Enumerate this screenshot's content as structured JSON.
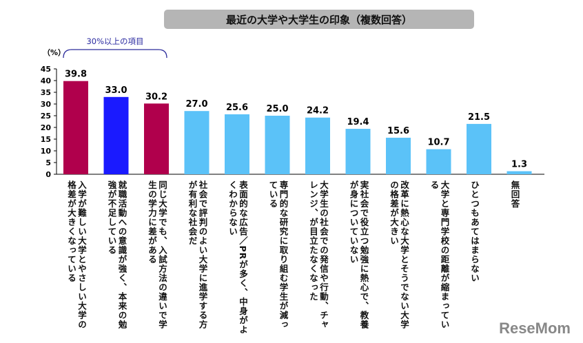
{
  "chart_data": {
    "type": "bar",
    "title": "最近の大学や大学生の印象（複数回答）",
    "ylabel": "（%）",
    "ylim": [
      0,
      45
    ],
    "yticks": [
      0,
      5,
      10,
      15,
      20,
      25,
      30,
      35,
      40,
      45
    ],
    "grid": false,
    "annotation": "30%以上の項目",
    "categories": [
      "入学が難しい大学とやさしい大学の格差が大きくなっている",
      "就職活動への意識が強く、本来の勉強が不足している",
      "同じ大学でも、入試方法の違いで学生の学力に差がある",
      "社会で評判のよい大学に進学する方が有利な社会だ",
      "表面的な広告／PRが多く、中身がよくわからない",
      "専門的な研究に取り組む学生が減っている",
      "大学生の社会での発信や行動、チャレンジ、が目立たなくなった",
      "実社会で役立つ勉強に熱心で、教養が身についていない",
      "改革に熱心な大学とそうでない大学の格差が大きい",
      "大学と専門学校の距離が縮まっている",
      "ひとつもあてはまらない",
      "無回答"
    ],
    "values": [
      39.8,
      33.0,
      30.2,
      27.0,
      25.6,
      25.0,
      24.2,
      19.4,
      15.6,
      10.7,
      21.5,
      1.3
    ],
    "colors": [
      "#b0004c",
      "#1a1aff",
      "#b0004c",
      "#5bc2f8",
      "#5bc2f8",
      "#5bc2f8",
      "#5bc2f8",
      "#5bc2f8",
      "#5bc2f8",
      "#5bc2f8",
      "#5bc2f8",
      "#5bc2f8"
    ]
  },
  "logo": "ReseMom"
}
